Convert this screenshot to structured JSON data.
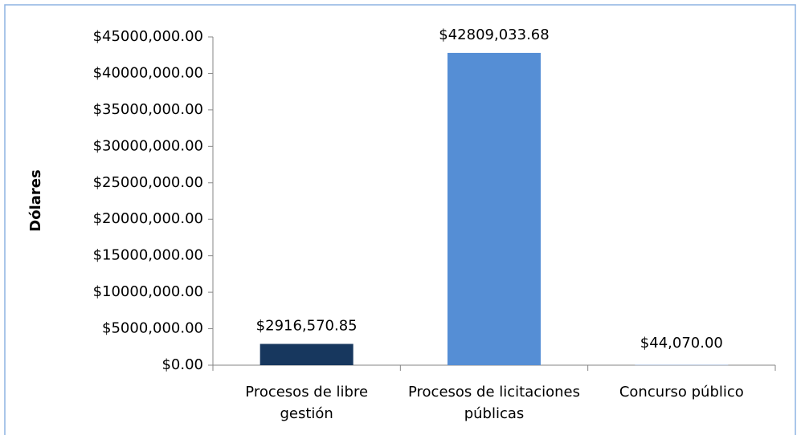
{
  "chart_data": {
    "type": "bar",
    "y_label": "Dólares",
    "categories": [
      "Procesos de libre gestión",
      "Procesos de licitaciones públicas",
      "Concurso público"
    ],
    "values": [
      2916570.85,
      42809033.68,
      44070
    ],
    "value_labels": [
      "$2916,570.85",
      "$42809,033.68",
      "$44,070.00"
    ],
    "colors": [
      "#17375e",
      "#558ed5",
      "#8eb4e3"
    ],
    "ylim": [
      0,
      45000000
    ],
    "yticks": [
      {
        "value": 0,
        "label": "$0.00"
      },
      {
        "value": 5000000,
        "label": "$5000,000.00"
      },
      {
        "value": 10000000,
        "label": "$10000,000.00"
      },
      {
        "value": 15000000,
        "label": "$15000,000.00"
      },
      {
        "value": 20000000,
        "label": "$20000,000.00"
      },
      {
        "value": 25000000,
        "label": "$25000,000.00"
      },
      {
        "value": 30000000,
        "label": "$30000,000.00"
      },
      {
        "value": 35000000,
        "label": "$35000,000.00"
      },
      {
        "value": 40000000,
        "label": "$40000,000.00"
      },
      {
        "value": 45000000,
        "label": "$45000,000.00"
      }
    ],
    "grid": false
  }
}
